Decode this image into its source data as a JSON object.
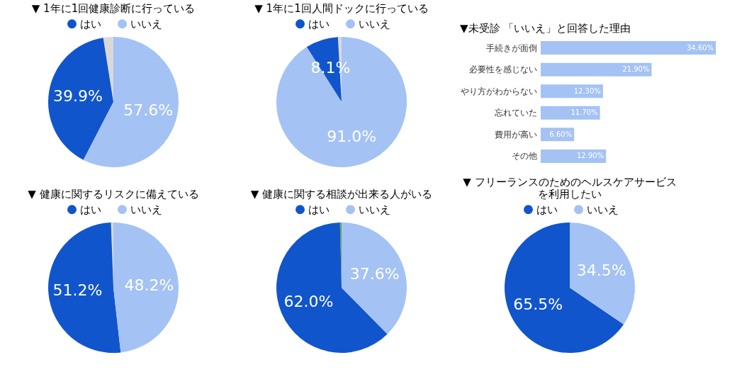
{
  "chart_data": [
    {
      "type": "pie",
      "title": "▼ 1年に1回健康診断に行っている",
      "categories": [
        null,
        "はい",
        "いいえ"
      ],
      "values": [
        2.5,
        39.9,
        57.6
      ],
      "colors": [
        "#d9d9d9",
        "#1155cc",
        "#a4c2f4"
      ],
      "value_labels": [
        null,
        "39.9%",
        "57.6%"
      ],
      "legend": "top"
    },
    {
      "type": "pie",
      "title": "▼ 1年に1回人間ドックに行っている",
      "categories": [
        null,
        "はい",
        "いいえ"
      ],
      "values": [
        0.9,
        8.1,
        91.0
      ],
      "colors": [
        "#d9d9d9",
        "#1155cc",
        "#a4c2f4"
      ],
      "value_labels": [
        null,
        "8.1%",
        "91.0%"
      ],
      "legend": "top"
    },
    {
      "type": "bar",
      "orientation": "horizontal",
      "title": "▼未受診 「いいえ」と回答した理由",
      "categories": [
        "手続きが面倒",
        "必要性を感じない",
        "やり方がわからない",
        "忘れていた",
        "費用が高い",
        "その他"
      ],
      "values": [
        34.6,
        21.9,
        12.3,
        11.7,
        6.6,
        12.9
      ],
      "color": "#a4c2f4",
      "value_labels": [
        "34.60%",
        "21.90%",
        "12.30%",
        "11.70%",
        "6.60%",
        "12.90%"
      ],
      "tick_labels": "y"
    },
    {
      "type": "pie",
      "title": "▼ 健康に関するリスクに備えている",
      "categories": [
        null,
        "はい",
        "いいえ"
      ],
      "values": [
        0.6,
        51.2,
        48.2
      ],
      "colors": [
        "#d9d9d9",
        "#1155cc",
        "#a4c2f4"
      ],
      "value_labels": [
        null,
        "51.2%",
        "48.2%"
      ],
      "legend": "top"
    },
    {
      "type": "pie",
      "title": "▼ 健康に関する相談が出来る人がいる",
      "categories": [
        null,
        "はい",
        "いいえ"
      ],
      "values": [
        0.4,
        62.0,
        37.6
      ],
      "colors": [
        "#6aa84f",
        "#1155cc",
        "#a4c2f4"
      ],
      "value_labels": [
        null,
        "62.0%",
        "37.6%"
      ],
      "legend": "top"
    },
    {
      "type": "pie",
      "title": "▼ フリーランスのためのヘルスケアサービスを利用したい",
      "categories": [
        "はい",
        "いいえ"
      ],
      "values": [
        65.5,
        34.5
      ],
      "colors": [
        "#1155cc",
        "#a4c2f4"
      ],
      "value_labels": [
        "65.5%",
        "34.5%"
      ],
      "legend": "top"
    }
  ]
}
